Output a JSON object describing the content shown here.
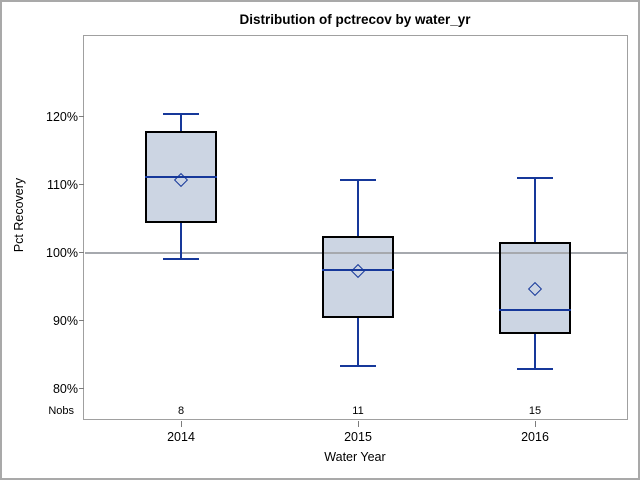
{
  "figure": {
    "title": "Distribution of pctrecov by water_yr"
  },
  "y_axis": {
    "label": "Pct Recovery",
    "tick_labels": [
      "120%",
      "110%",
      "100%",
      "90%",
      "80%"
    ]
  },
  "x_axis": {
    "label": "Water Year",
    "tick_labels": [
      "2014",
      "2015",
      "2016"
    ]
  },
  "nobs_row": {
    "label": "Nobs",
    "values": [
      "8",
      "11",
      "15"
    ]
  },
  "chart_data": {
    "type": "box",
    "title": "Distribution of pctrecov by water_yr",
    "xlabel": "Water Year",
    "ylabel": "Pct Recovery",
    "categories": [
      "2014",
      "2015",
      "2016"
    ],
    "y_axis_ticks_pct": [
      120,
      110,
      100,
      90,
      80
    ],
    "ylim_pct": [
      75,
      131
    ],
    "reference_line_pct": 100,
    "grid": false,
    "legend": false,
    "series": [
      {
        "category": "2014",
        "nobs": 8,
        "whisker_low": 99.1,
        "q1": 104.4,
        "median": 111.1,
        "mean": 110.6,
        "q3": 117.9,
        "whisker_high": 120.3,
        "outliers": []
      },
      {
        "category": "2015",
        "nobs": 11,
        "whisker_low": 83.3,
        "q1": 90.3,
        "median": 97.4,
        "mean": 97.3,
        "q3": 102.4,
        "whisker_high": 110.6,
        "outliers": []
      },
      {
        "category": "2016",
        "nobs": 15,
        "whisker_low": 82.8,
        "q1": 88.0,
        "median": 91.6,
        "mean": 94.7,
        "q3": 101.5,
        "whisker_high": 110.9,
        "outliers": []
      }
    ],
    "colors": {
      "box_fill": "#ccd5e3",
      "box_border": "#000000",
      "whisker": "#16389a",
      "median_line": "#16389a",
      "mean_marker_outline": "#16389a",
      "reference_line": "#a6a9ae",
      "axis_frame": "#a0a0a0",
      "tick_mark": "#7c7c7c",
      "text": "#000000"
    }
  }
}
